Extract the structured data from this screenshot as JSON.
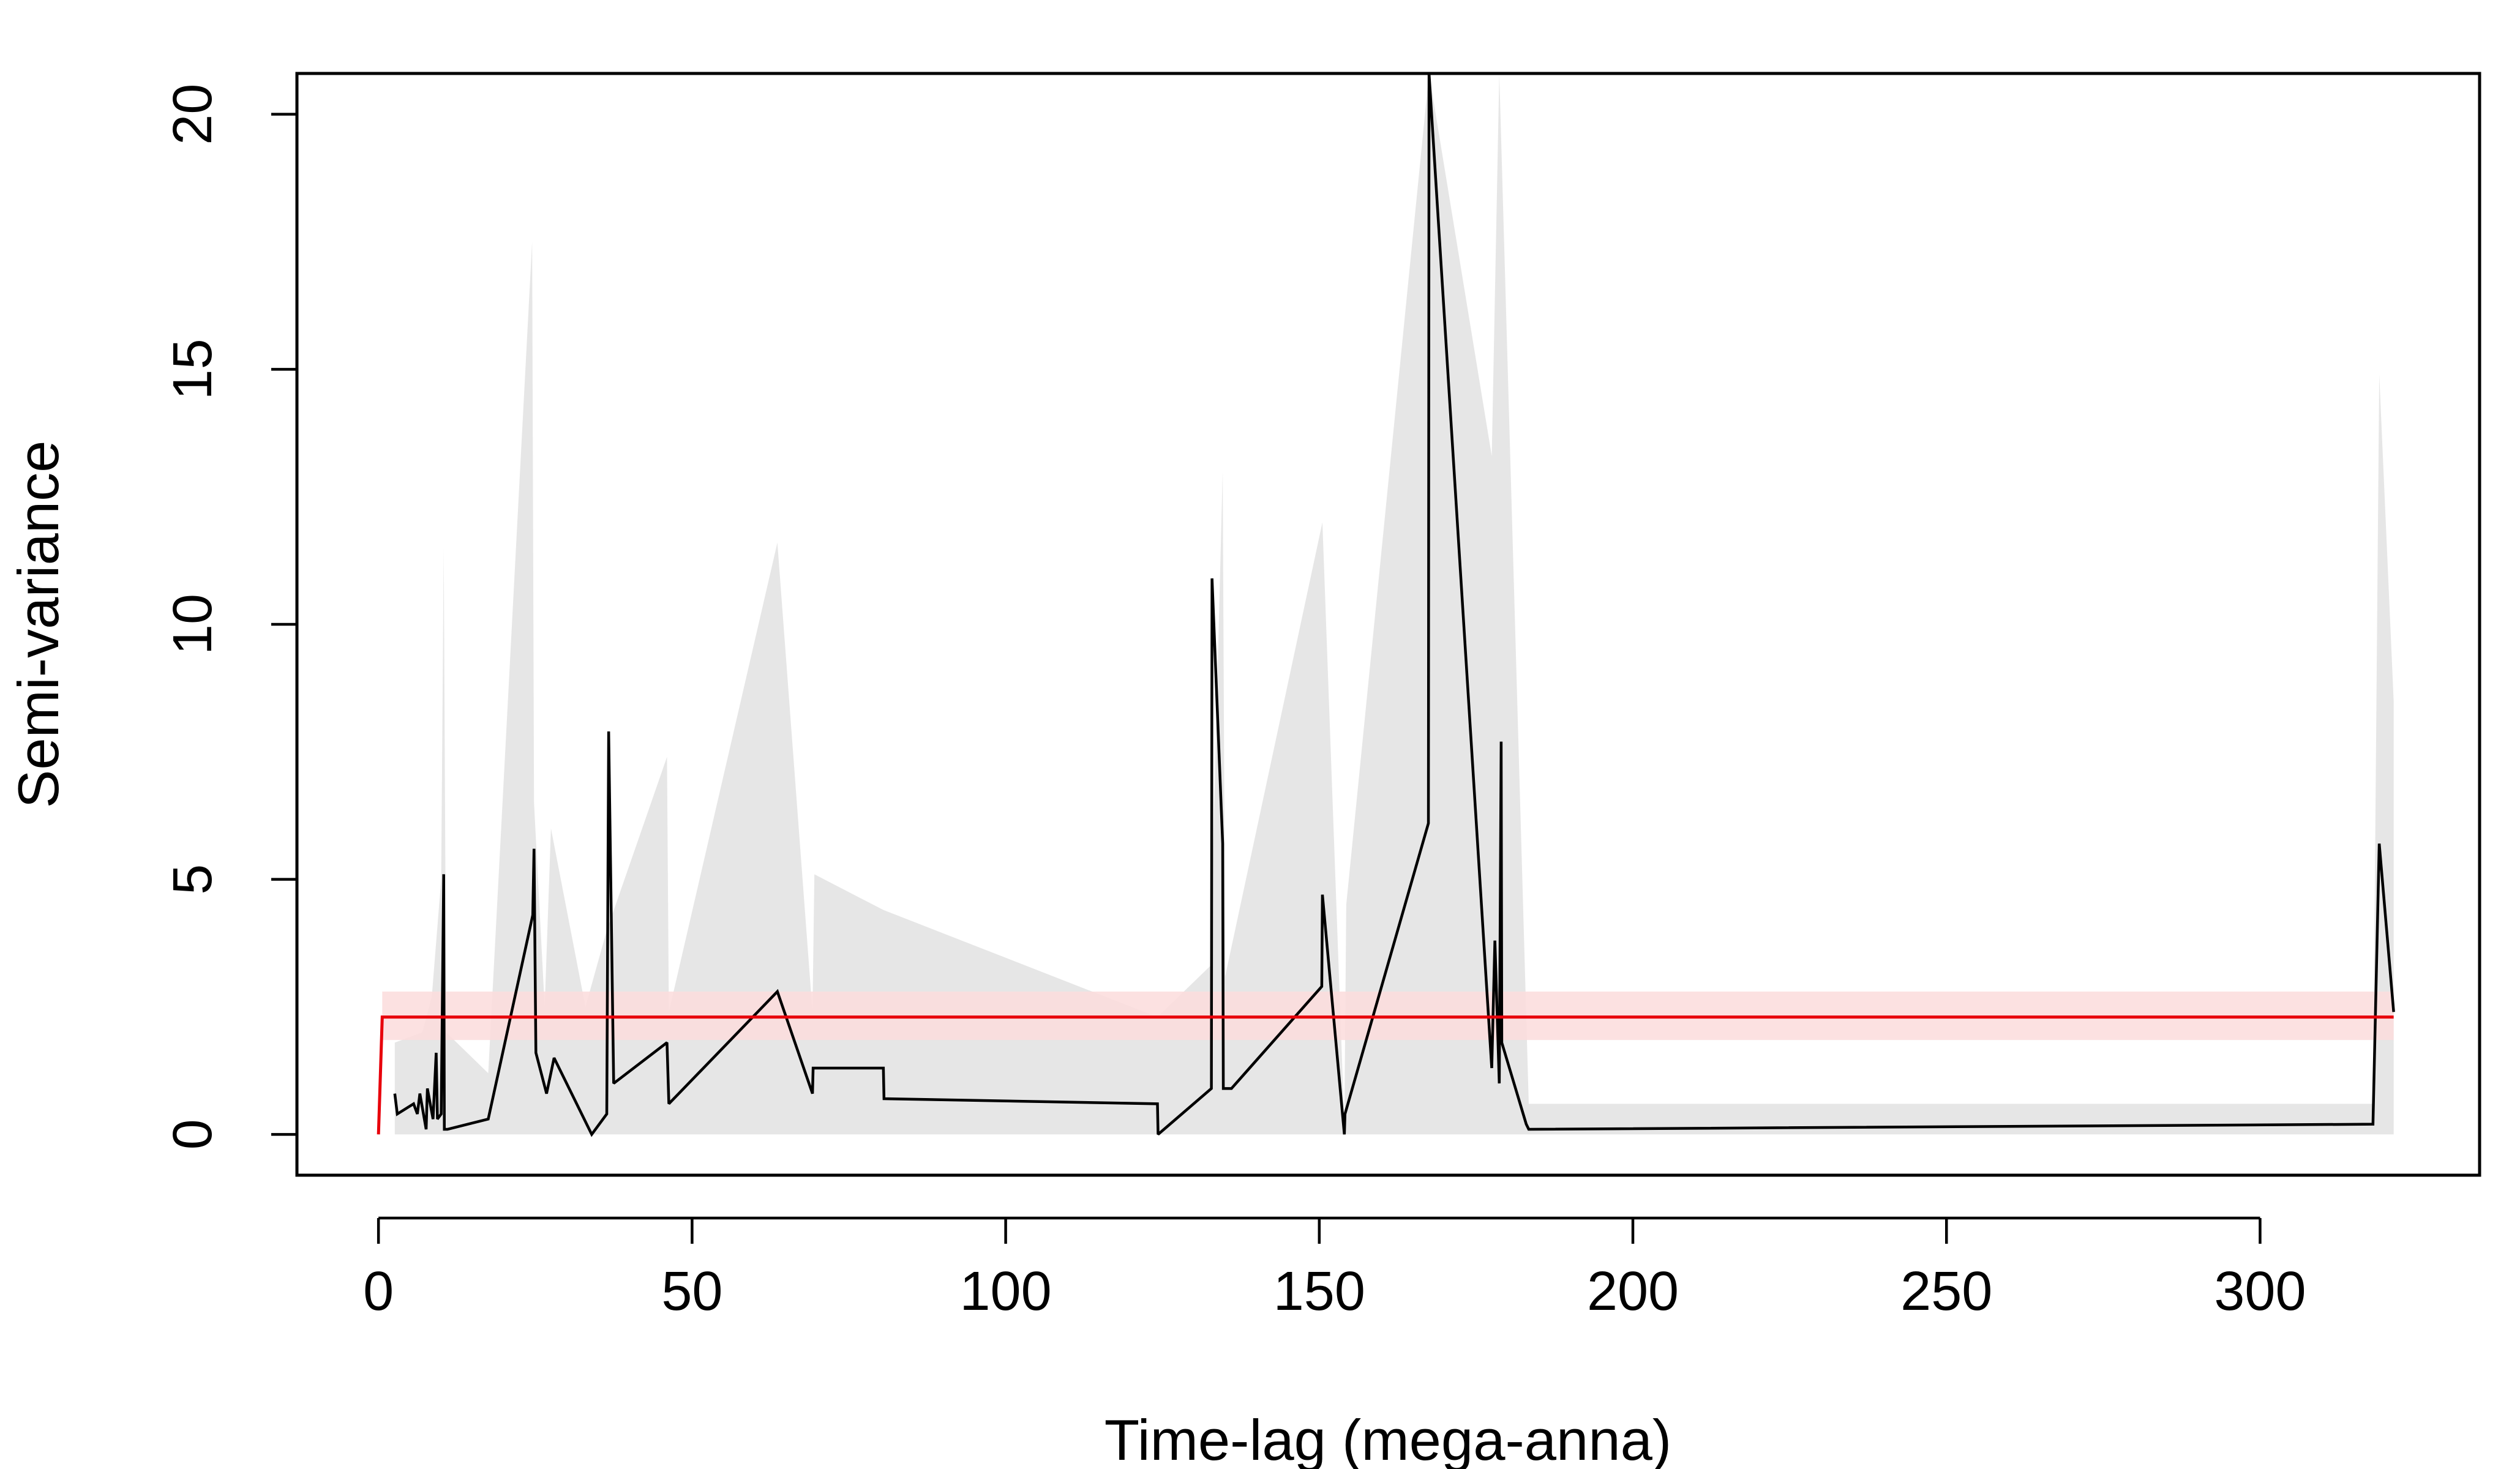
{
  "chart_data": {
    "type": "line",
    "title": "",
    "xlabel": "Time-lag (mega-anna)",
    "ylabel": "Semi-variance",
    "xlim": [
      -13,
      335
    ],
    "ylim": [
      -0.8,
      20.8
    ],
    "x_ticks": [
      0,
      50,
      100,
      150,
      200,
      250,
      300
    ],
    "y_ticks": [
      0,
      5,
      10,
      15,
      20
    ],
    "x_tick_labels": [
      "0",
      "50",
      "100",
      "150",
      "200",
      "250",
      "300"
    ],
    "y_tick_labels": [
      "0",
      "5",
      "10",
      "15",
      "20"
    ],
    "grid": false,
    "legend": "none",
    "colors": {
      "empirical": "#000000",
      "envelope": "#e6e6e6",
      "model": "#e8000b",
      "model_band": "#fbdcdc"
    },
    "series": [
      {
        "role": "empirical",
        "x": [
          2.6,
          3,
          5.6,
          6.2,
          6.6,
          7.6,
          7.8,
          8.7,
          9.2,
          9.4,
          10,
          10.4,
          10.5,
          11,
          17.5,
          24.6,
          24.8,
          25.1,
          26.8,
          28,
          34,
          36.4,
          36.7,
          37.5,
          46,
          46.3,
          63.6,
          69.2,
          69.3,
          80.5,
          80.6,
          124.2,
          124.3,
          132.8,
          132.9,
          134.6,
          134.7,
          136,
          150.4,
          150.5,
          154,
          154.1,
          167.4,
          167.5,
          177.5,
          178,
          178.7,
          179,
          179.1,
          183,
          183.4,
          318,
          319,
          321.3
        ],
        "y": [
          0.8,
          0.4,
          0.6,
          0.4,
          0.8,
          0.1,
          0.9,
          0.3,
          1.6,
          0.3,
          0.4,
          5.1,
          0.1,
          0.1,
          0.3,
          4.3,
          5.6,
          1.6,
          0.8,
          1.5,
          0,
          0.4,
          7.9,
          1,
          1.8,
          0.6,
          2.8,
          0.8,
          1.3,
          1.3,
          0.7,
          0.6,
          0,
          0.9,
          10.9,
          5.7,
          0.9,
          0.9,
          2.9,
          4.7,
          0,
          0.4,
          6.1,
          20.8,
          1.3,
          3.8,
          1,
          7.7,
          1.8,
          0.2,
          0.1,
          0.2,
          5.7,
          2.4
        ]
      },
      {
        "role": "envelope",
        "x": [
          2.6,
          7,
          8.5,
          10,
          10.4,
          10.8,
          17.5,
          24.5,
          24.8,
          26.5,
          27.5,
          33,
          36.4,
          46,
          46.3,
          63.6,
          69.2,
          69.5,
          80.5,
          124.2,
          132.6,
          134.6,
          135,
          150.5,
          154,
          154.3,
          167.5,
          177.5,
          178.7,
          183.4,
          318,
          319,
          321.3
        ],
        "lower": [
          0,
          0,
          0,
          0,
          0,
          0,
          0,
          0,
          0,
          0,
          0,
          0,
          0,
          0,
          0,
          0,
          0,
          0,
          0,
          0,
          0,
          0,
          0,
          0,
          0,
          0,
          0,
          0,
          0,
          0,
          0,
          0,
          0
        ],
        "upper": [
          1.8,
          2,
          2.7,
          5,
          11.5,
          2,
          1.2,
          17.5,
          6.5,
          2.5,
          6,
          2.5,
          4,
          7.4,
          2.4,
          11.6,
          2.4,
          5.1,
          4.4,
          2.3,
          3.3,
          13,
          3.1,
          12,
          0.2,
          4.5,
          20.8,
          13.3,
          20.8,
          0.6,
          0.6,
          14.9,
          8.5
        ]
      },
      {
        "role": "model",
        "x": [
          0,
          0.6,
          321.3
        ],
        "y": [
          0,
          2.3,
          2.3
        ],
        "band_lower": [
          0,
          1.85,
          1.85
        ],
        "band_upper": [
          0,
          2.8,
          2.8
        ]
      }
    ]
  }
}
